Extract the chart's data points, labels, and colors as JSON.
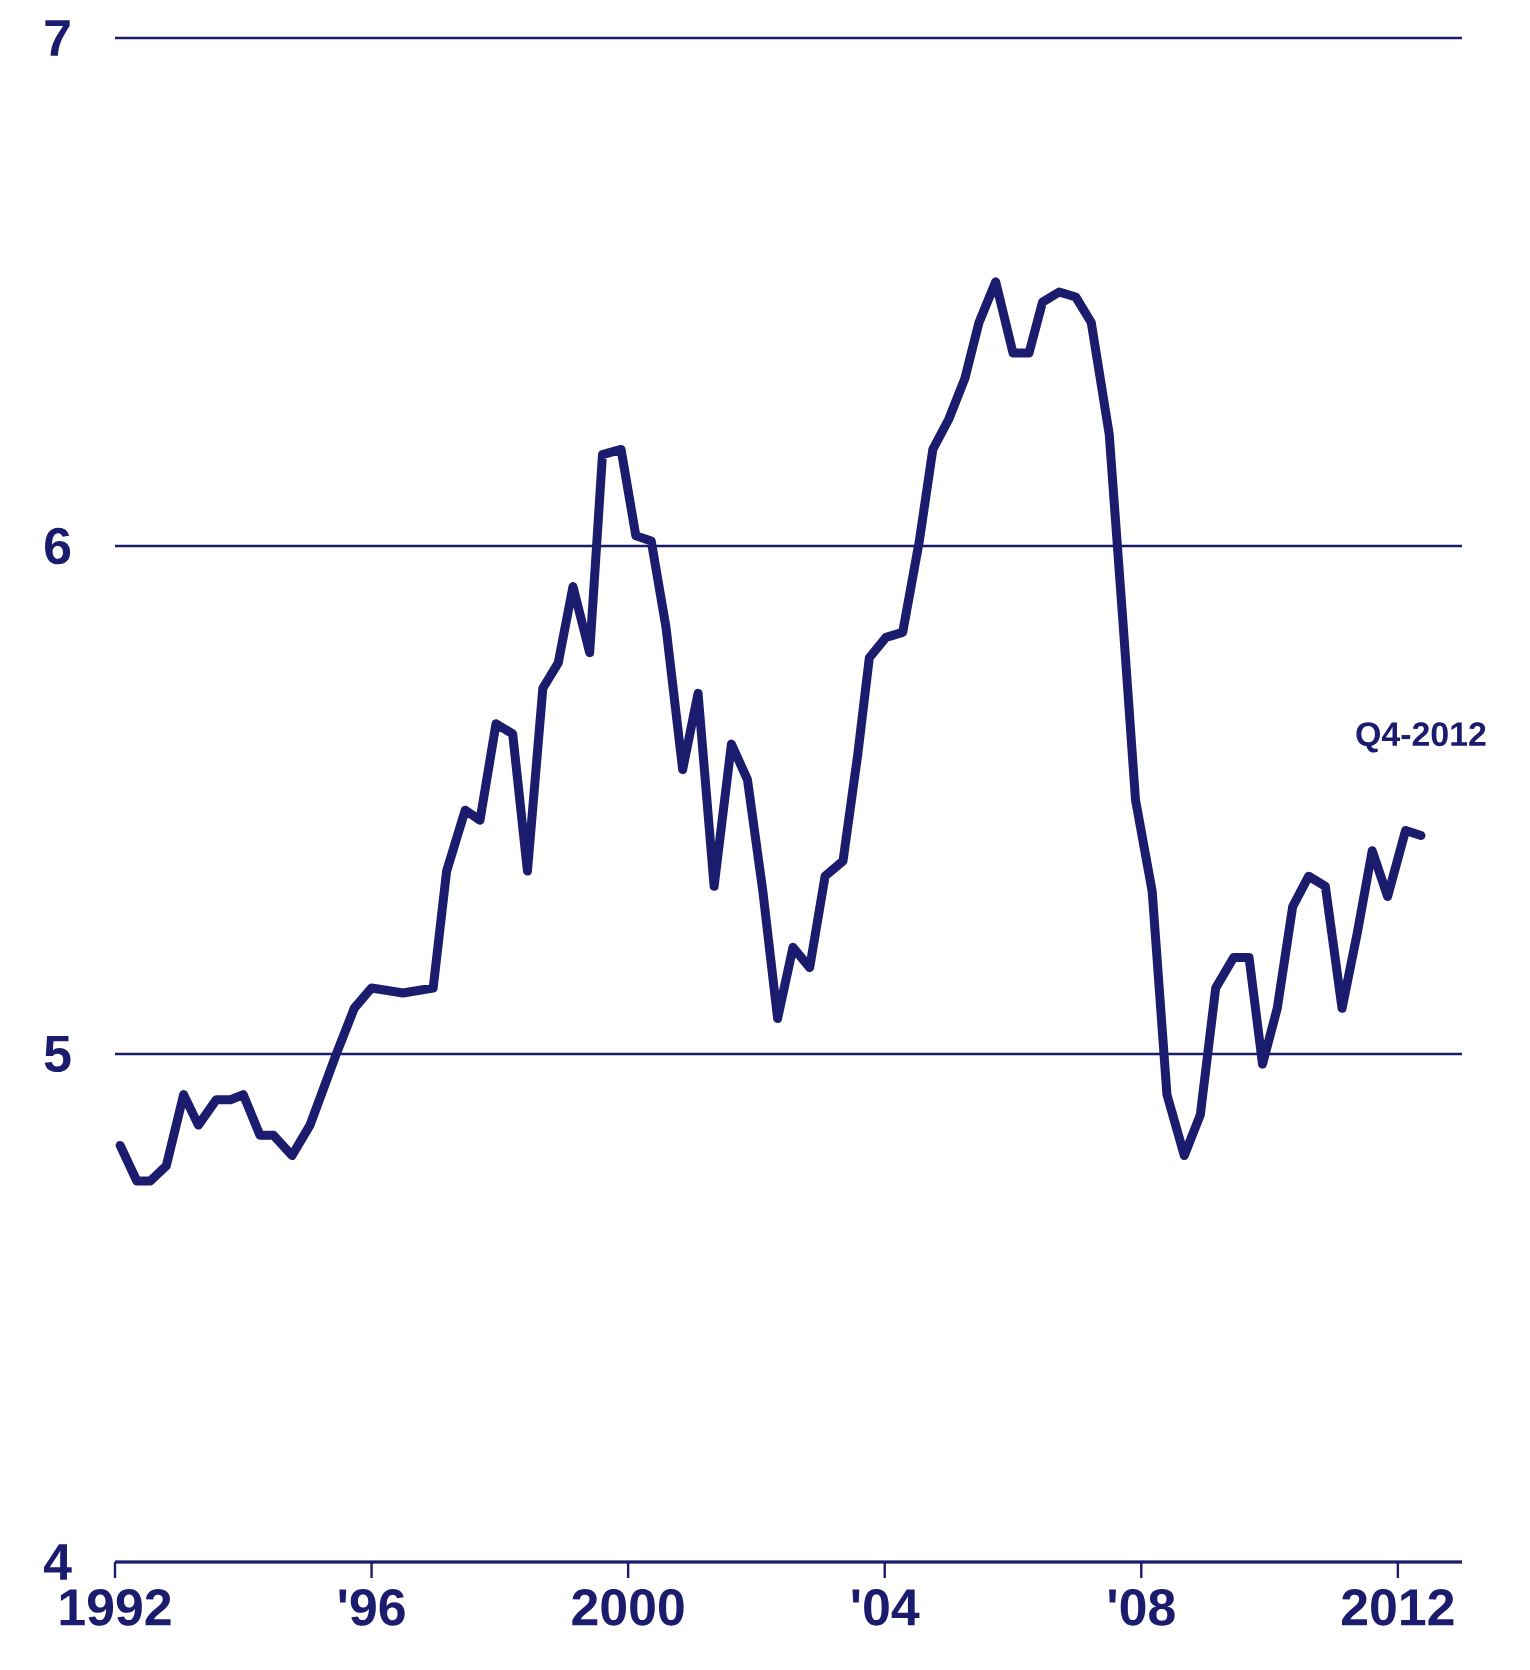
{
  "chart_data": {
    "type": "line",
    "x": [
      1992.08,
      1992.34,
      1992.55,
      1992.8,
      1993.07,
      1993.3,
      1993.58,
      1993.8,
      1994.0,
      1994.26,
      1994.47,
      1994.76,
      1995.04,
      1995.45,
      1995.73,
      1996.0,
      1996.49,
      1996.96,
      1997.17,
      1997.46,
      1997.69,
      1997.94,
      1998.2,
      1998.43,
      1998.67,
      1998.91,
      1999.14,
      1999.4,
      1999.6,
      1999.89,
      2000.12,
      2000.36,
      2000.59,
      2000.85,
      2001.09,
      2001.34,
      2001.61,
      2001.86,
      2002.1,
      2002.33,
      2002.57,
      2002.83,
      2003.07,
      2003.35,
      2003.58,
      2003.76,
      2004.02,
      2004.28,
      2004.54,
      2004.75,
      2005.0,
      2005.25,
      2005.47,
      2005.73,
      2006.0,
      2006.25,
      2006.46,
      2006.72,
      2006.98,
      2007.22,
      2007.5,
      2007.72,
      2007.91,
      2008.17,
      2008.4,
      2008.67,
      2008.92,
      2009.16,
      2009.44,
      2009.68,
      2009.89,
      2010.12,
      2010.36,
      2010.61,
      2010.87,
      2011.13,
      2011.37,
      2011.6,
      2011.84,
      2012.12,
      2012.36
    ],
    "series": [
      {
        "color": "#1c1c6e",
        "values": [
          4.82,
          4.75,
          4.75,
          4.78,
          4.92,
          4.86,
          4.91,
          4.91,
          4.92,
          4.84,
          4.84,
          4.8,
          4.86,
          5.0,
          5.09,
          5.13,
          5.12,
          5.13,
          5.36,
          5.48,
          5.46,
          5.65,
          5.63,
          5.36,
          5.72,
          5.77,
          5.92,
          5.79,
          6.18,
          6.19,
          6.02,
          6.01,
          5.84,
          5.56,
          5.71,
          5.33,
          5.61,
          5.54,
          5.32,
          5.07,
          5.21,
          5.17,
          5.35,
          5.38,
          5.59,
          5.78,
          5.82,
          5.83,
          6.01,
          6.19,
          6.25,
          6.33,
          6.44,
          6.52,
          6.38,
          6.38,
          6.48,
          6.5,
          6.49,
          6.44,
          6.22,
          5.84,
          5.5,
          5.32,
          4.92,
          4.8,
          4.88,
          5.13,
          5.19,
          5.19,
          4.98,
          5.09,
          5.29,
          5.35,
          5.33,
          5.09,
          5.24,
          5.4,
          5.31,
          5.44,
          5.43
        ]
      }
    ],
    "xlim": [
      1992,
      2013
    ],
    "xticks": [
      1992,
      {
        "value": 1996,
        "label": "'96"
      },
      2000,
      {
        "value": 2004,
        "label": "'04"
      },
      {
        "value": 2008,
        "label": "'08"
      },
      2012
    ],
    "ylim": [
      4,
      7
    ],
    "yticks": [
      4,
      5,
      6,
      7
    ],
    "grid": "y",
    "annotations": [
      {
        "text": "Q4-2012",
        "x": 2012.36,
        "y": 5.43
      }
    ]
  }
}
